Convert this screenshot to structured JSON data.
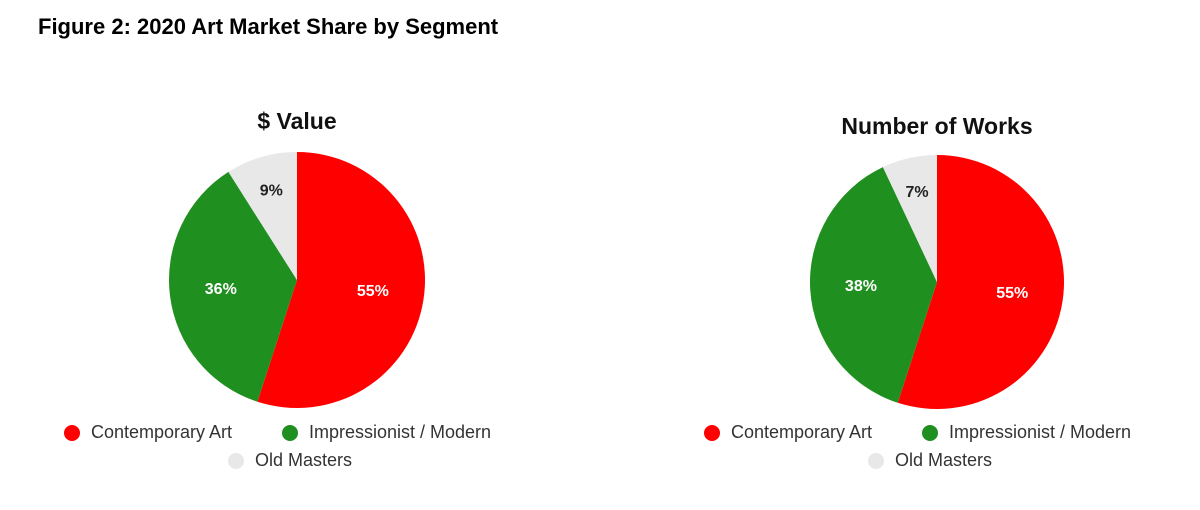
{
  "title": "Figure 2: 2020 Art Market Share by Segment",
  "chart_data": [
    {
      "type": "pie",
      "title": "$ Value",
      "categories": [
        "Contemporary Art",
        "Impressionist / Modern",
        "Old Masters"
      ],
      "values": [
        55,
        36,
        9
      ],
      "value_labels": [
        "55%",
        "36%",
        "9%"
      ],
      "colors": [
        "#ff0000",
        "#1f8f1f",
        "#e8e8e8"
      ]
    },
    {
      "type": "pie",
      "title": "Number of Works",
      "categories": [
        "Contemporary Art",
        "Impressionist / Modern",
        "Old Masters"
      ],
      "values": [
        55,
        38,
        7
      ],
      "value_labels": [
        "55%",
        "38%",
        "7%"
      ],
      "colors": [
        "#ff0000",
        "#1f8f1f",
        "#e8e8e8"
      ]
    }
  ]
}
